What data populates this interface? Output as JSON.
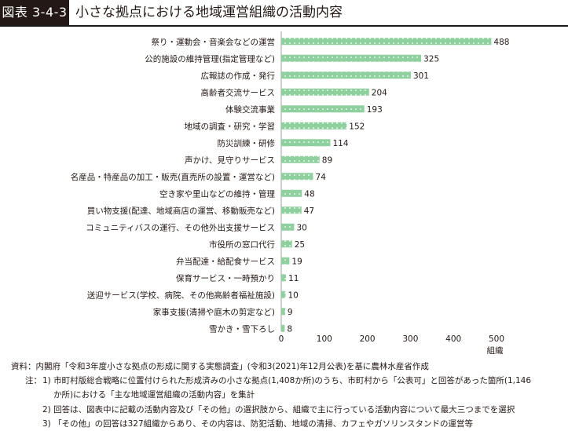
{
  "title": {
    "badge": "図表 3-4-3",
    "text": "小さな拠点における地域運営組織の活動内容"
  },
  "chart_data": {
    "type": "bar",
    "orientation": "horizontal",
    "categories": [
      "祭り・運動会・音楽会などの運営",
      "公的施設の維持管理(指定管理など)",
      "広報誌の作成・発行",
      "高齢者交流サービス",
      "体験交流事業",
      "地域の調査・研究・学習",
      "防災訓練・研修",
      "声かけ、見守りサービス",
      "名産品・特産品の加工・販売(直売所の設置・運営など)",
      "空き家や里山などの維持・管理",
      "買い物支援(配達、地域商店の運営、移動販売など)",
      "コミュニティバスの運行、その他外出支援サービス",
      "市役所の窓口代行",
      "弁当配達・給配食サービス",
      "保育サービス・一時預かり",
      "送迎サービス(学校、病院、その他高齢者福祉施設)",
      "家事支援(清掃や庭木の剪定など)",
      "雪かき・雪下ろし"
    ],
    "values": [
      488,
      325,
      301,
      204,
      193,
      152,
      114,
      89,
      74,
      48,
      47,
      30,
      25,
      19,
      11,
      10,
      9,
      8
    ],
    "xlim": [
      0,
      500
    ],
    "xticks": [
      "0",
      "100",
      "200",
      "300",
      "400",
      "500"
    ],
    "xunit": "組織",
    "bar_color": "#8fd19e",
    "dot_color": "#ffffff",
    "grid": false
  },
  "notes": {
    "source": "資料：内閣府「令和3年度小さな拠点の形成に関する実態調査」(令和3(2021)年12月公表)を基に農林水産省作成",
    "label": "注：",
    "n1_num": "1)",
    "n1_line1": "市町村版総合戦略に位置付けられた形成済みの小さな拠点(1,408か所)のうち、市町村から「公表可」と回答があった箇所(1,146",
    "n1_line2": "か所)における「主な地域運営組織の活動内容」を集計",
    "n2_num": "2)",
    "n2_text": "回答は、図表中に記載の活動内容及び「その他」の選択肢から、組織で主に行っている活動内容について最大三つまでを選択",
    "n3_num": "3)",
    "n3_text": "「その他」の回答は327組織からあり、その内容は、防犯活動、地域の清掃、カフェやガソリンスタンドの運営等"
  }
}
